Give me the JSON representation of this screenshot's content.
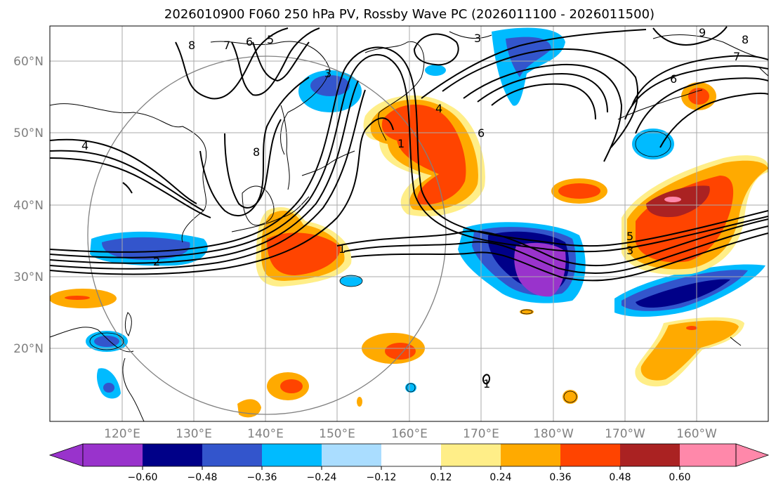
{
  "title": "2026010900 F060 250 hPa PV, Rossby Wave PC (2026011100 - 2026011500)",
  "axes": {
    "lon_ticks": [
      "120°E",
      "130°E",
      "140°E",
      "150°E",
      "160°E",
      "170°E",
      "180°W",
      "170°W",
      "160°W"
    ],
    "lat_ticks": [
      "60°N",
      "50°N",
      "40°N",
      "30°N",
      "20°N"
    ]
  },
  "contour_labels": [
    "8",
    "7",
    "6",
    "5",
    "3",
    "4",
    "8",
    "2",
    "1",
    "1",
    "4",
    "6",
    "3",
    "9",
    "8",
    "7",
    "6",
    "5",
    "3",
    "1"
  ],
  "colorbar": {
    "ticks": [
      "−0.60",
      "−0.48",
      "−0.36",
      "−0.24",
      "−0.12",
      "0.12",
      "0.24",
      "0.36",
      "0.48",
      "0.60"
    ],
    "colors": [
      "#9933cc",
      "#000088",
      "#3355cc",
      "#00bbff",
      "#aaddff",
      "#ffffff",
      "#ffee88",
      "#ffaa00",
      "#ff4400",
      "#aa2222",
      "#ff88aa"
    ]
  },
  "palette": {
    "purple": "#9933cc",
    "navy": "#000088",
    "blue": "#3355cc",
    "cyan": "#00bbff",
    "lightblue": "#aaddff",
    "yellow": "#ffee88",
    "orange": "#ffaa00",
    "redorange": "#ff4400",
    "darkred": "#aa2222",
    "pink": "#ff88aa"
  }
}
